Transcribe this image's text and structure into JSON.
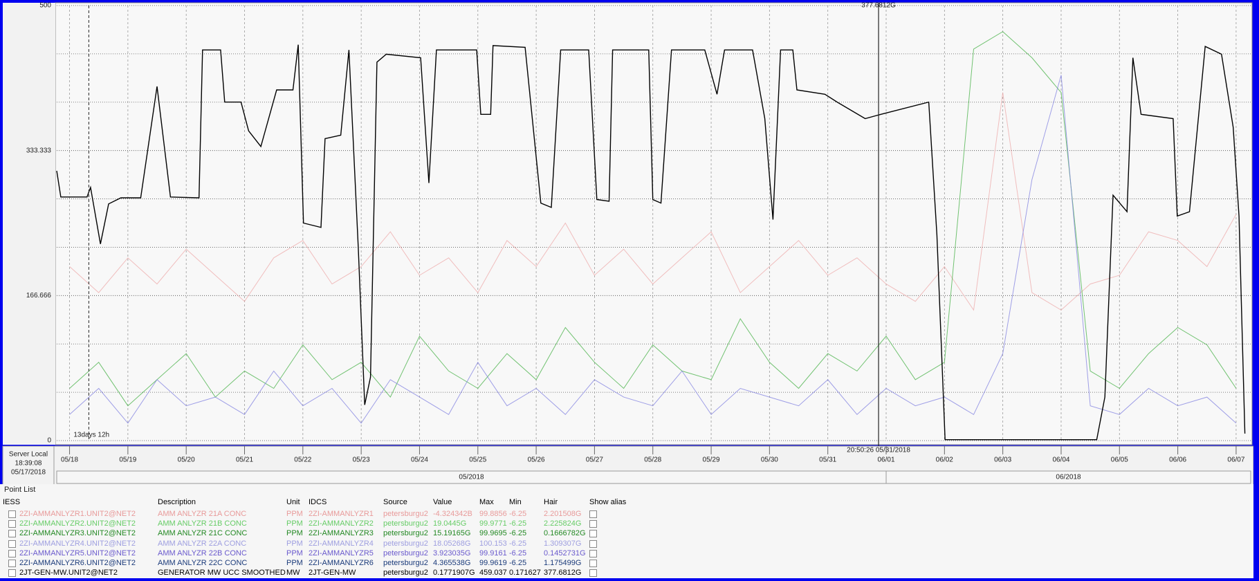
{
  "chart_data": {
    "type": "line",
    "ylim": [
      0,
      500
    ],
    "yticks": [
      0,
      166.666,
      333.333,
      500
    ],
    "minor_yticks": [
      55.555,
      111.111,
      222.222,
      277.777,
      388.888,
      444.444
    ],
    "xlim": [
      -0.22,
      20.25
    ],
    "xticks": [
      {
        "value": 0,
        "label": "05/18"
      },
      {
        "value": 1,
        "label": "05/19"
      },
      {
        "value": 2,
        "label": "05/20"
      },
      {
        "value": 3,
        "label": "05/21"
      },
      {
        "value": 4,
        "label": "05/22"
      },
      {
        "value": 5,
        "label": "05/23"
      },
      {
        "value": 6,
        "label": "05/24"
      },
      {
        "value": 7,
        "label": "05/25"
      },
      {
        "value": 8,
        "label": "05/26"
      },
      {
        "value": 9,
        "label": "05/27"
      },
      {
        "value": 10,
        "label": "05/28"
      },
      {
        "value": 11,
        "label": "05/29"
      },
      {
        "value": 12,
        "label": "05/30"
      },
      {
        "value": 13,
        "label": "05/31"
      },
      {
        "value": 14,
        "label": "06/01"
      },
      {
        "value": 15,
        "label": "06/02"
      },
      {
        "value": 16,
        "label": "06/03"
      },
      {
        "value": 17,
        "label": "06/04"
      },
      {
        "value": 18,
        "label": "06/05"
      },
      {
        "value": 19,
        "label": "06/06"
      },
      {
        "value": 20,
        "label": "06/07"
      }
    ],
    "months": [
      {
        "label": "05/2018",
        "from": -0.22,
        "to": 14
      },
      {
        "label": "06/2018",
        "from": 14,
        "to": 20.25
      }
    ],
    "server_time": [
      "Server Local",
      "18:39:08",
      "05/17/2018"
    ],
    "cursor": {
      "x": 13.87,
      "label_top": "377.6812G",
      "label_bottom": "20:50:26 05/31/2018"
    },
    "marker": {
      "x": 0.33,
      "label": "13days 12h"
    },
    "grid": true,
    "x": [
      0,
      0.5,
      1,
      1.5,
      2,
      2.5,
      3,
      3.5,
      4,
      4.5,
      5,
      5.5,
      6,
      6.5,
      7,
      7.5,
      8,
      8.5,
      9,
      9.5,
      10,
      10.5,
      11,
      11.5,
      12,
      12.5,
      13,
      13.5,
      14,
      14.5,
      15,
      15.5,
      16,
      16.5,
      17,
      17.5,
      18,
      18.5,
      19,
      19.5,
      20
    ],
    "series": [
      {
        "color": "#eeaaaa",
        "values": [
          200,
          170,
          210,
          180,
          220,
          190,
          160,
          210,
          230,
          180,
          200,
          240,
          190,
          210,
          170,
          230,
          200,
          250,
          190,
          220,
          180,
          210,
          240,
          170,
          200,
          230,
          190,
          210,
          180,
          160,
          200,
          150,
          400,
          170,
          150,
          180,
          190,
          240,
          230,
          200,
          260
        ]
      },
      {
        "color": "#44b044",
        "values": [
          60,
          90,
          40,
          70,
          100,
          50,
          80,
          60,
          110,
          70,
          90,
          50,
          120,
          80,
          60,
          100,
          70,
          130,
          90,
          60,
          110,
          80,
          70,
          140,
          90,
          60,
          100,
          80,
          120,
          70,
          90,
          450,
          470,
          440,
          400,
          80,
          60,
          100,
          130,
          110,
          60
        ]
      },
      {
        "color": "#8080e0",
        "values": [
          30,
          60,
          20,
          70,
          40,
          50,
          30,
          80,
          40,
          60,
          20,
          70,
          50,
          30,
          90,
          40,
          60,
          30,
          70,
          50,
          40,
          80,
          30,
          60,
          50,
          40,
          70,
          30,
          60,
          40,
          50,
          30,
          100,
          300,
          420,
          40,
          30,
          60,
          40,
          50,
          20
        ]
      },
      {
        "color": "#000000",
        "x": [
          -0.22,
          -0.15,
          0.3,
          0.36,
          0.53,
          0.67,
          0.88,
          1.22,
          1.5,
          1.73,
          2.22,
          2.28,
          2.59,
          2.66,
          2.94,
          3.07,
          3.28,
          3.55,
          3.83,
          3.92,
          4.01,
          4.31,
          4.38,
          4.65,
          4.79,
          4.95,
          5.06,
          5.16,
          5.27,
          5.43,
          6.02,
          6.16,
          6.29,
          6.98,
          7.05,
          7.22,
          7.26,
          7.81,
          8.08,
          8.26,
          8.42,
          8.9,
          9.04,
          9.25,
          9.31,
          9.93,
          10.0,
          10.14,
          10.32,
          10.89,
          11.1,
          11.23,
          11.71,
          11.92,
          12.06,
          12.19,
          12.4,
          12.47,
          12.95,
          13.16,
          13.64,
          13.91,
          14.73,
          14.87,
          15.01,
          17.61,
          17.75,
          17.89,
          18.13,
          18.23,
          18.37,
          18.92,
          18.99,
          19.2,
          19.47,
          19.75,
          19.95,
          20.05,
          20.15
        ],
        "values": [
          310,
          280,
          280,
          291,
          226,
          272,
          279,
          279,
          407,
          280,
          279,
          449,
          449,
          389,
          389,
          356,
          338,
          403,
          403,
          455,
          250,
          245,
          347,
          351,
          449,
          222,
          41,
          73,
          435,
          444,
          440,
          296,
          449,
          449,
          375,
          375,
          454,
          452,
          273,
          268,
          449,
          449,
          277,
          275,
          449,
          449,
          277,
          273,
          449,
          449,
          398,
          449,
          449,
          370,
          254,
          449,
          449,
          403,
          398,
          389,
          370,
          375,
          389,
          236,
          1,
          1,
          50,
          282,
          263,
          440,
          375,
          370,
          258,
          263,
          453,
          444,
          360,
          258,
          8
        ]
      }
    ]
  },
  "point_list": {
    "title": "Point List",
    "columns": [
      "IESS",
      "Description",
      "Unit",
      "IDCS",
      "Source",
      "Value",
      "Max",
      "Min",
      "Hair",
      "Show alias"
    ],
    "row_colors": [
      "#e89a9a",
      "#66cc66",
      "#228822",
      "#9e9ee0",
      "#6a5acd",
      "#1a3a7a",
      "#000000"
    ],
    "rows": [
      [
        "2ZI-AMMANLYZR1.UNIT2@NET2",
        "AMM ANLYZR 21A CONC",
        "PPM",
        "2ZI-AMMANLYZR1",
        "petersburgu2",
        "-4.324342B",
        "99.8856",
        "-6.25",
        "2.201508G"
      ],
      [
        "2ZI-AMMANLYZR2.UNIT2@NET2",
        "AMM ANLYZR 21B CONC",
        "PPM",
        "2ZI-AMMANLYZR2",
        "petersburgu2",
        "19.0445G",
        "99.9771",
        "-6.25",
        "2.225824G"
      ],
      [
        "2ZI-AMMANLYZR3.UNIT2@NET2",
        "AMM ANLYZR 21C CONC",
        "PPM",
        "2ZI-AMMANLYZR3",
        "petersburgu2",
        "15.19165G",
        "99.9695",
        "-6.25",
        "0.1666782G"
      ],
      [
        "2ZI-AMMANLYZR4.UNIT2@NET2",
        "AMM ANLYZR 22A CONC",
        "PPM",
        "2ZI-AMMANLYZR4",
        "petersburgu2",
        "18.05268G",
        "100.153",
        "-6.25",
        "1.309307G"
      ],
      [
        "2ZI-AMMANLYZR5.UNIT2@NET2",
        "AMM ANLYZR 22B CONC",
        "PPM",
        "2ZI-AMMANLYZR5",
        "petersburgu2",
        "3.923035G",
        "99.9161",
        "-6.25",
        "0.1452731G"
      ],
      [
        "2ZI-AMMANLYZR6.UNIT2@NET2",
        "AMM ANLYZR 22C CONC",
        "PPM",
        "2ZI-AMMANLYZR6",
        "petersburgu2",
        "4.365538G",
        "99.9619",
        "-6.25",
        "1.175499G"
      ],
      [
        "2JT-GEN-MW.UNIT2@NET2",
        "GENERATOR MW UCC SMOOTHED",
        "MW",
        "2JT-GEN-MW",
        "petersburgu2",
        "0.1771907G",
        "459.037",
        "0.171627",
        "377.6812G"
      ]
    ]
  }
}
